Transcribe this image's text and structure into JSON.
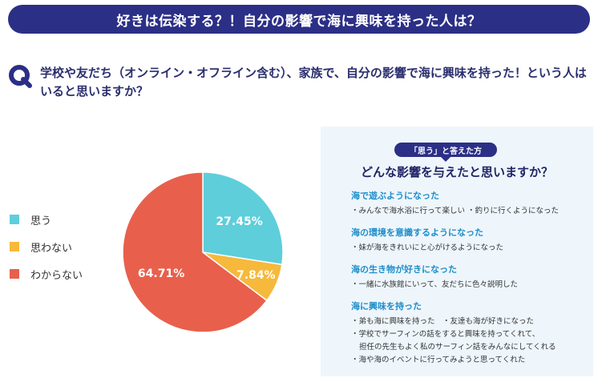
{
  "banner": {
    "title": "好きは伝染する？！自分の影響で海に興味を持った人は？"
  },
  "question": {
    "icon": "q-letter-icon",
    "text": "学校や友だち（オンライン・オフライン含む）、家族で、自分の影響で海に興味を持った！という人はいると思いますか？"
  },
  "chart_data": {
    "type": "pie",
    "categories": [
      "思う",
      "思わない",
      "わからない"
    ],
    "values": [
      27.45,
      7.84,
      64.71
    ],
    "labels": [
      "27.45%",
      "7.84%",
      "64.71%"
    ],
    "colors": [
      "#5ecedb",
      "#f6b93b",
      "#e8604c"
    ],
    "legend": "left"
  },
  "panel": {
    "tag": "「思う」と答えた方",
    "title": "どんな影響を与えたと思いますか？",
    "sections": [
      {
        "head": "海で遊ぶようになった",
        "lines": [
          "・みんなで海水浴に行って楽しい ・釣りに行くようになった"
        ]
      },
      {
        "head": "海の環境を意識するようになった",
        "lines": [
          "・妹が海をきれいにと心がけるようになった"
        ]
      },
      {
        "head": "海の生き物が好きになった",
        "lines": [
          "・一緒に水族館にいって、友だちに色々説明した"
        ]
      },
      {
        "head": "海に興味を持った",
        "lines": [
          "・弟も海に興味を持った　・友達も海が好きになった",
          "・学校でサーフィンの話をすると興味を持ってくれて、",
          "担任の先生もよく私のサーフィン話をみんなにしてくれる",
          "・海や海のイベントに行ってみようと思ってくれた"
        ]
      }
    ]
  }
}
